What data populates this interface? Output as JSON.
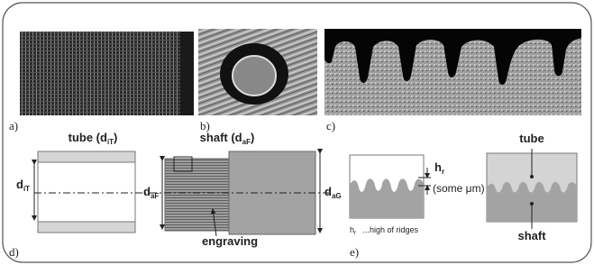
{
  "panels": {
    "a": "a)",
    "b": "b)",
    "c": "c)",
    "d": "d)",
    "e": "e)"
  },
  "diagram_d": {
    "tube_title": {
      "text": "tube (d",
      "sub": "iT",
      "close": ")"
    },
    "shaft_title": {
      "text": "shaft (d",
      "sub": "aF",
      "close": ")"
    },
    "tube_dim": {
      "text": "d",
      "sub": "iT"
    },
    "shaft_dim_left": {
      "text": "d",
      "sub": "aF"
    },
    "shaft_dim_right": {
      "text": "d",
      "sub": "aG"
    },
    "engraving": "engraving"
  },
  "diagram_e": {
    "ridge_label": {
      "text": "h",
      "sub": "r"
    },
    "ridge_note": "(some μm)",
    "legend": {
      "text": "h",
      "sub": "r",
      "rest": "   ...high of ridges"
    },
    "tube": "tube",
    "shaft": "shaft"
  }
}
